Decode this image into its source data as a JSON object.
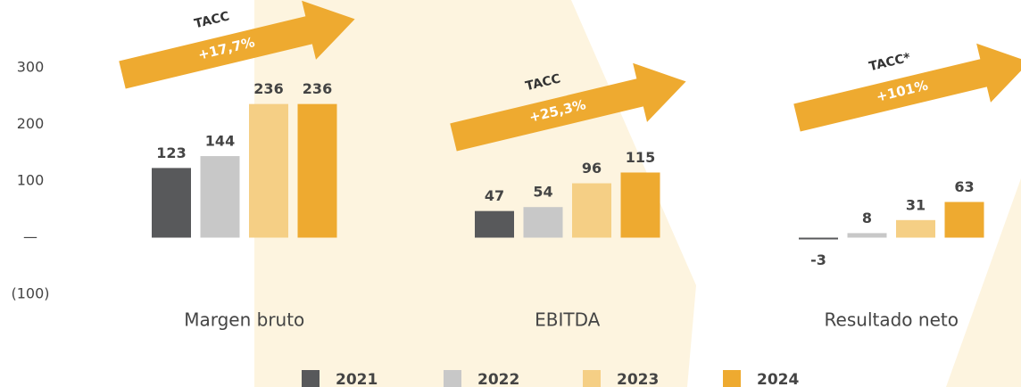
{
  "chart_data": {
    "type": "bar",
    "categories": [
      "Margen bruto",
      "EBITDA",
      "Resultado neto"
    ],
    "series": [
      {
        "name": "2021",
        "color": "#58595b",
        "values": [
          123,
          47,
          -3
        ]
      },
      {
        "name": "2022",
        "color": "#c8c8c8",
        "values": [
          144,
          54,
          8
        ]
      },
      {
        "name": "2023",
        "color": "#f5cf85",
        "values": [
          236,
          96,
          31
        ]
      },
      {
        "name": "2024",
        "color": "#eeaa30",
        "values": [
          236,
          115,
          63
        ]
      }
    ],
    "ylim": [
      -100,
      300
    ],
    "yticks": [
      {
        "value": -100,
        "label": "(100)"
      },
      {
        "value": 0,
        "label": "—"
      },
      100,
      200,
      300
    ],
    "annotations": [
      {
        "label": "TACC",
        "value": "+17,7%"
      },
      {
        "label": "TACC",
        "value": "+25,3%"
      },
      {
        "label": "TACC*",
        "value": "+101%"
      }
    ]
  }
}
